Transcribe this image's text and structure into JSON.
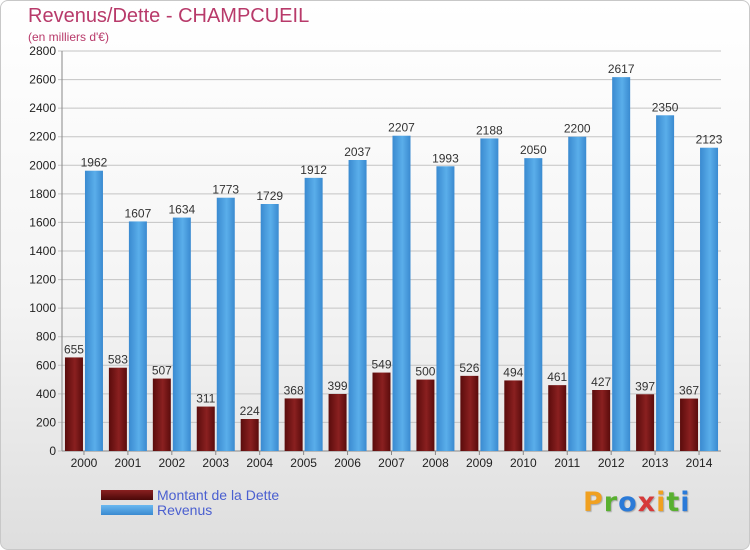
{
  "header": {
    "title": "Revenus/Dette - CHAMPCUEIL",
    "subtitle": "(en milliers d'€)"
  },
  "colors": {
    "dette": "#7a1818",
    "revenus": "#4a9fe0",
    "title": "#b83a6a",
    "legend_text": "#4a5fd0"
  },
  "chart_data": {
    "type": "bar",
    "title": "Revenus/Dette - CHAMPCUEIL",
    "subtitle": "(en milliers d'€)",
    "categories": [
      "2000",
      "2001",
      "2002",
      "2003",
      "2004",
      "2005",
      "2006",
      "2007",
      "2008",
      "2009",
      "2010",
      "2011",
      "2012",
      "2013",
      "2014"
    ],
    "series": [
      {
        "name": "Montant de la Dette",
        "values": [
          655,
          583,
          507,
          311,
          224,
          368,
          399,
          549,
          500,
          526,
          494,
          461,
          427,
          397,
          367
        ]
      },
      {
        "name": "Revenus",
        "values": [
          1962,
          1607,
          1634,
          1773,
          1729,
          1912,
          2037,
          2207,
          1993,
          2188,
          2050,
          2200,
          2617,
          2350,
          2123
        ]
      }
    ],
    "ylim": [
      0,
      2800
    ],
    "yticks": [
      0,
      200,
      400,
      600,
      800,
      1000,
      1200,
      1400,
      1600,
      1800,
      2000,
      2200,
      2400,
      2600,
      2800
    ],
    "grid": true,
    "legend_position": "bottom-left"
  },
  "legend": {
    "items": [
      {
        "label": "Montant de la Dette"
      },
      {
        "label": "Revenus"
      }
    ]
  },
  "logo": {
    "letters": [
      "P",
      "r",
      "o",
      "x",
      "i",
      "t",
      "i"
    ],
    "colors": [
      "#f0a020",
      "#58b030",
      "#2a7ad8",
      "#d63a3a",
      "#f0a020",
      "#58b030",
      "#2a7ad8"
    ]
  }
}
